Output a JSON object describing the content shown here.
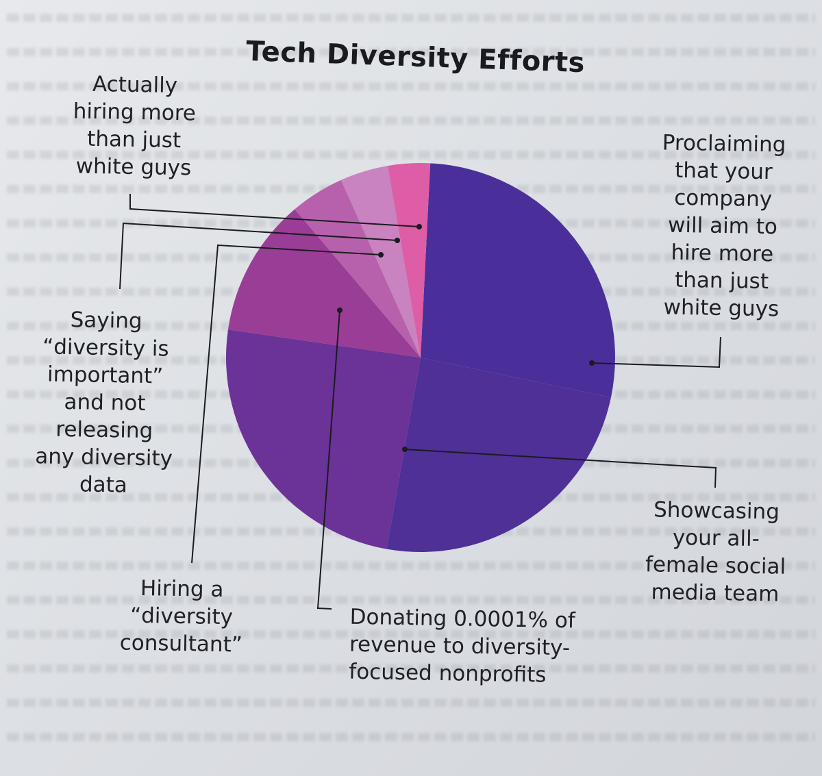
{
  "chart_data": {
    "type": "pie",
    "title": "Tech Diversity Efforts",
    "slices": [
      {
        "label": "Proclaiming that your company will aim to hire more than just white guys",
        "value": 27.5,
        "color": "#4a2f9a"
      },
      {
        "label": "Showcasing your all-female social media team",
        "value": 24.5,
        "color": "#4e3096"
      },
      {
        "label": "Donating 0.0001% of revenue to diversity-focused nonprofits",
        "value": 24.5,
        "color": "#6b3297"
      },
      {
        "label": "Hiring a “diversity consultant”",
        "value": 11.5,
        "color": "#9a3d96"
      },
      {
        "label": "Saying “diversity is important” and not releasing any diversity data",
        "value": 4.5,
        "color": "#b761ac"
      },
      {
        "label": "Saying “diversity is important” and not releasing any diversity data (cont.)",
        "value": 4.0,
        "color": "#c983c0"
      },
      {
        "label": "Actually hiring more than just white guys",
        "value": 3.5,
        "color": "#dd5da6"
      }
    ]
  },
  "labels": {
    "actually": "Actually\nhiring more\nthan just\nwhite guys",
    "proclaiming": "Proclaiming\nthat your\ncompany\nwill aim to\nhire more\nthan just\nwhite guys",
    "saying": "Saying\n“diversity is\nimportant”\nand not\nreleasing\nany diversity\ndata",
    "showcasing": "Showcasing\nyour all-\nfemale social\nmedia team",
    "hiring": "Hiring a\n“diversity\nconsultant”",
    "donating": "Donating 0.0001% of\nrevenue to diversity-\nfocused nonprofits"
  }
}
